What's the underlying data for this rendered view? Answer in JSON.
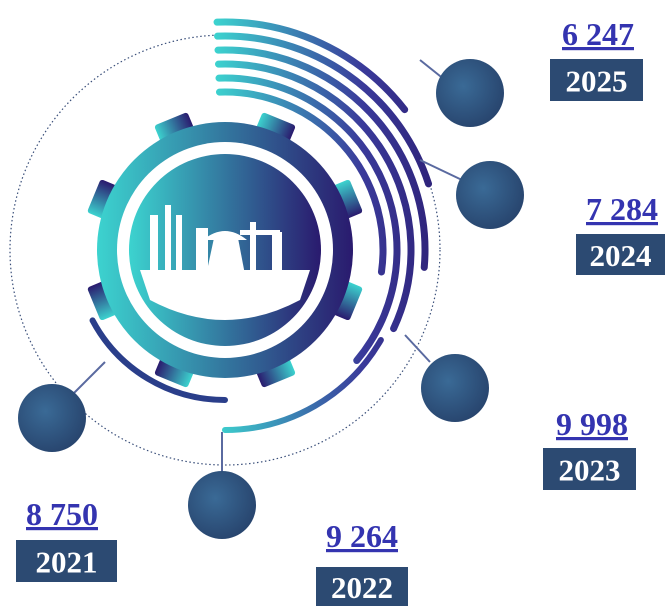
{
  "items": [
    {
      "value": "6 247",
      "year": "2025"
    },
    {
      "value": "7 284",
      "year": "2024"
    },
    {
      "value": "9 998",
      "year": "2023"
    },
    {
      "value": "9 264",
      "year": "2022"
    },
    {
      "value": "8 750",
      "year": "2021"
    }
  ]
}
